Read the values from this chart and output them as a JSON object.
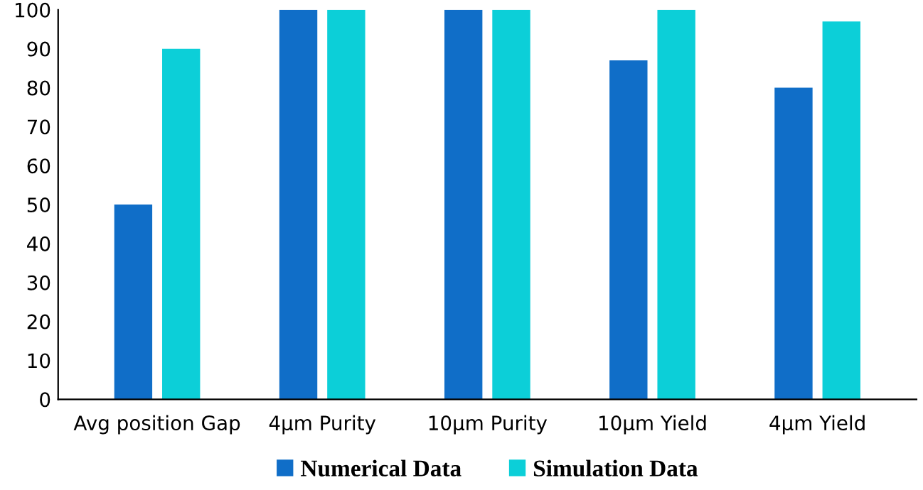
{
  "chart_data": {
    "type": "bar",
    "categories": [
      "Avg position Gap",
      "4µm Purity",
      "10µm Purity",
      "10µm Yield",
      "4µm Yield"
    ],
    "series": [
      {
        "name": "Numerical Data",
        "color": "#106ec8",
        "values": [
          50,
          100,
          100,
          87,
          80
        ]
      },
      {
        "name": "Simulation Data",
        "color": "#0ccfd8",
        "values": [
          90,
          100,
          100,
          100,
          97
        ]
      }
    ],
    "ylim": [
      0,
      100
    ],
    "yticks": [
      0,
      10,
      20,
      30,
      40,
      50,
      60,
      70,
      80,
      90,
      100
    ],
    "grid": false,
    "legend": "bottom"
  }
}
